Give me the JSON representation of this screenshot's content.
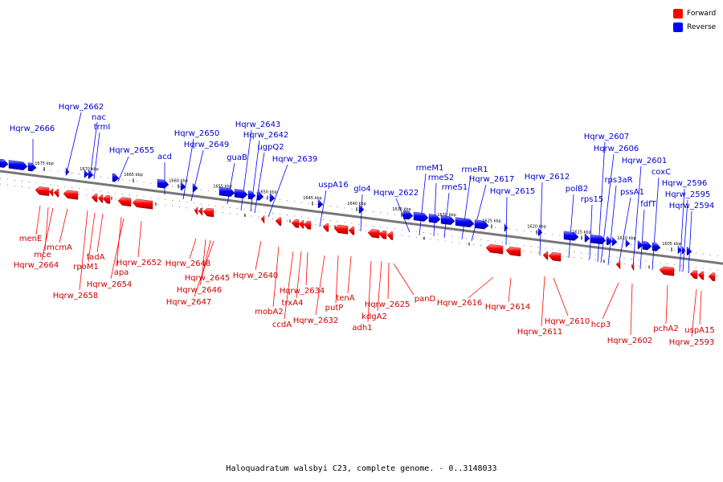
{
  "legend": {
    "forward": {
      "label": "Forward",
      "color": "#ff0000"
    },
    "reverse": {
      "label": "Reverse",
      "color": "#0000ff"
    }
  },
  "caption": "Haloquadratum walsbyi C23, complete genome. - 0..3148033",
  "scale_labels": [
    "1675 kbp",
    "1670 kbp",
    "1665 kbp",
    "1660 kbp",
    "1655 kbp",
    "1650 kbp",
    "1645 kbp",
    "1640 kbp",
    "1635 kbp",
    "1630 kbp",
    "1625 kbp",
    "1620 kbp",
    "1615 kbp",
    "1610 kbp",
    "1605 kbp"
  ],
  "reverse_gene_labels": [
    "Hqrw_2666",
    "Hqrw_2662",
    "nac",
    "trmI",
    "Hqrw_2655",
    "acd",
    "Hqrw_2650",
    "Hqrw_2649",
    "guaB",
    "Hqrw_2643",
    "Hqrw_2642",
    "ugpQ2",
    "Hqrw_2639",
    "uspA16",
    "glo4",
    "Hqrw_2622",
    "rmeM1",
    "rmeS2",
    "rmeS1",
    "rmeR1",
    "Hqrw_2617",
    "Hqrw_2615",
    "Hqrw_2612",
    "polB2",
    "rps15",
    "Hqrw_2607",
    "Hqrw_2606",
    "rps3aR",
    "pssA1",
    "Hqrw_2601",
    "fdfT",
    "coxC",
    "Hqrw_2596",
    "Hqrw_2595",
    "Hqrw_2594"
  ],
  "forward_gene_labels": [
    "menE",
    "mce",
    "Hqrw_2664",
    "mcmA",
    "Hqrw_2658",
    "rpoM1",
    "fadA",
    "apa",
    "Hqrw_2654",
    "Hqrw_2652",
    "Hqrw_2648",
    "Hqrw_2645",
    "Hqrw_2646",
    "Hqrw_2647",
    "Hqrw_2640",
    "mobA2",
    "ccdA",
    "trxA4",
    "Hqrw_2634",
    "Hqrw_2632",
    "putP",
    "tenA",
    "adh1",
    "kdgA2",
    "Hqrw_2625",
    "panD",
    "Hqrw_2616",
    "Hqrw_2614",
    "Hqrw_2611",
    "Hqrw_2610",
    "hcp3",
    "Hqrw_2602",
    "pchA2",
    "Hqrw_2593",
    "uspA15"
  ]
}
